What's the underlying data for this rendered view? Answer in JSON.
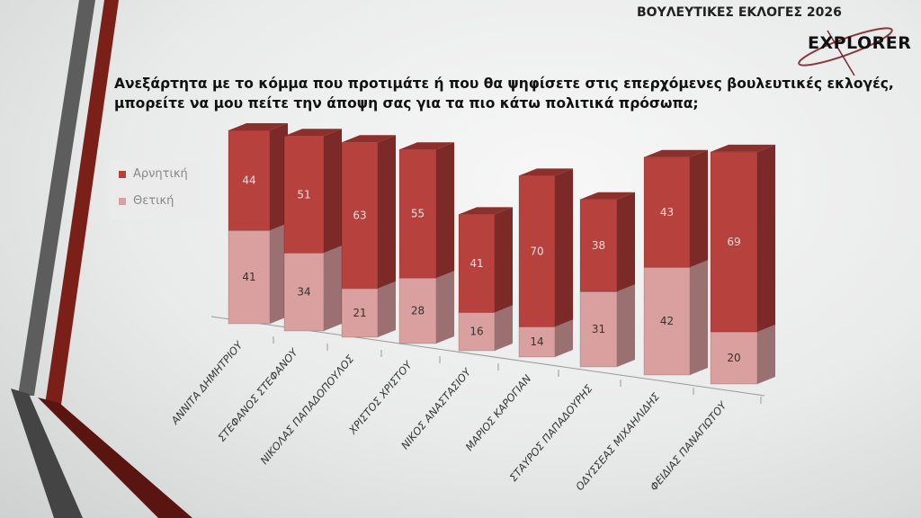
{
  "header": {
    "title": "ΒΟΥΛΕΥΤΙΚΕΣ ΕΚΛΟΓΕΣ 2026",
    "logo": "EXPLORER"
  },
  "question": "Ανεξάρτητα με το κόμμα που προτιμάτε ή που θα ψηφίσετε στις επερχόμενες βουλευτικές εκλογές, μπορείτε να μου πείτε την άποψη σας για τα πιο κάτω πολιτικά πρόσωπα;",
  "chart_data": {
    "type": "bar",
    "stacked": true,
    "style": "3d",
    "categories": [
      "ΑΝΝΙΤΑ ΔΗΜΗΤΡΙΟΥ",
      "ΣΤΕΦΑΝΟΣ ΣΤΕΦΑΝΟΥ",
      "ΝΙΚΟΛΑΣ ΠΑΠΑΔΟΠΟΥΛΟΣ",
      "ΧΡΙΣΤΟΣ ΧΡΙΣΤΟΥ",
      "ΝΙΚΟΣ ΑΝΑΣΤΑΣΙΟΥ",
      "ΜΑΡΙΟΣ ΚΑΡΟΓΙΑΝ",
      "ΣΤΑΥΡΟΣ ΠΑΠΑΔΟΥΡΗΣ",
      "ΟΔΥΣΣΕΑΣ ΜΙΧΑΗΛΙΔΗΣ",
      "ΦΕΙΔΙΑΣ ΠΑΝΑΓΙΩΤΟΥ"
    ],
    "series": [
      {
        "name": "Θετική",
        "values": [
          41,
          34,
          21,
          28,
          16,
          14,
          31,
          42,
          20
        ],
        "color": "#d9a09f"
      },
      {
        "name": "Αρνητική",
        "values": [
          44,
          51,
          63,
          55,
          41,
          70,
          38,
          43,
          69
        ],
        "color": "#b6413d"
      }
    ],
    "legend_position": "left",
    "grid": false,
    "data_labels": true
  }
}
